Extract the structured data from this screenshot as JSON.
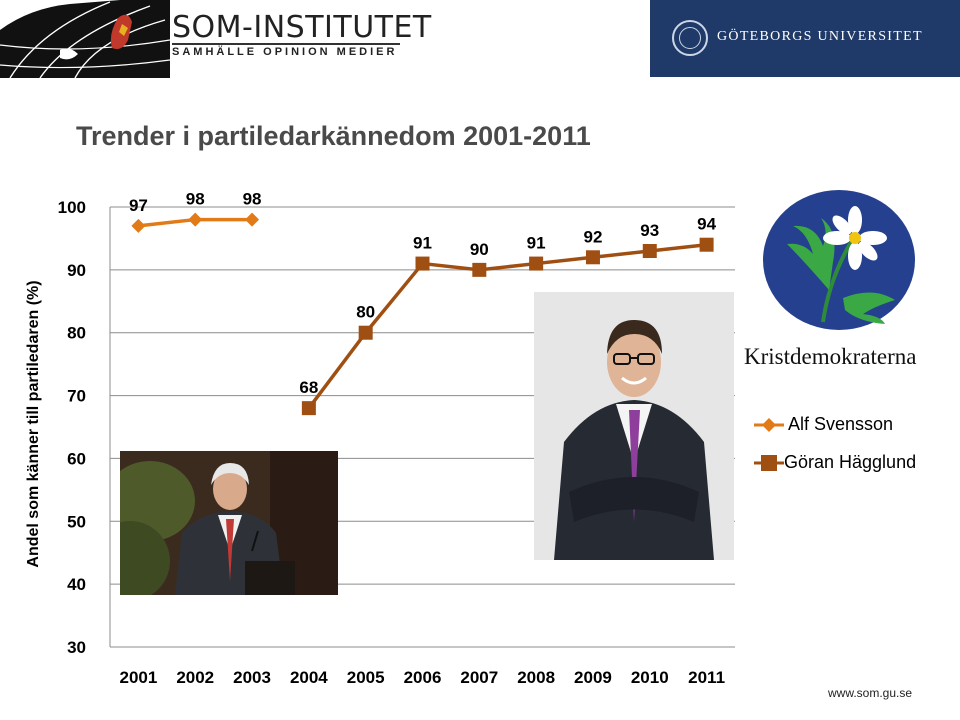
{
  "header": {
    "org_name": "SOM-INSTITUTET",
    "org_tagline": "SAMHÄLLE OPINION MEDIER",
    "university": "GÖTEBORGS UNIVERSITET"
  },
  "slide": {
    "title": "Trender i partiledarkännedom 2001-2011",
    "footer_url": "www.som.gu.se"
  },
  "party_logo": {
    "name": "Kristdemokraterna",
    "color": "#25408f"
  },
  "colors": {
    "alf": "#e27a17",
    "goran": "#a04f13",
    "grid": "#8c8c8c"
  },
  "chart_data": {
    "type": "line",
    "title": "",
    "xlabel": "",
    "ylabel": "Andel som känner till partiledaren (%)",
    "categories": [
      "2001",
      "2002",
      "2003",
      "2004",
      "2005",
      "2006",
      "2007",
      "2008",
      "2009",
      "2010",
      "2011"
    ],
    "ylim": [
      30,
      100
    ],
    "yticks": [
      100,
      90,
      80,
      70,
      60,
      50,
      40,
      30
    ],
    "grid": true,
    "legend_position": "right",
    "series": [
      {
        "name": "Alf Svensson",
        "color": "#e27a17",
        "marker": "diamond",
        "values": [
          97,
          98,
          98,
          null,
          null,
          null,
          null,
          null,
          null,
          null,
          null
        ]
      },
      {
        "name": "Göran Hägglund",
        "color": "#a04f13",
        "marker": "square",
        "values": [
          null,
          null,
          null,
          68,
          80,
          91,
          90,
          91,
          92,
          93,
          94
        ]
      }
    ]
  }
}
